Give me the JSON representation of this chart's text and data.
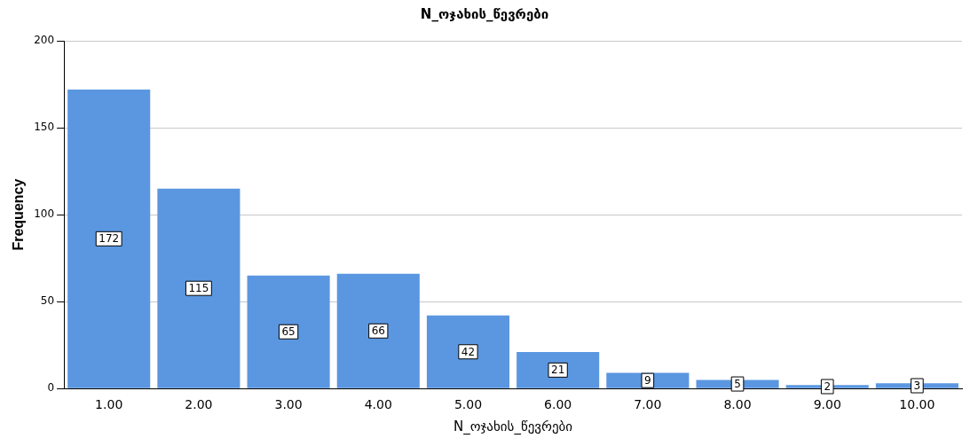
{
  "chart_data": {
    "type": "bar",
    "title": "N_ოჯახის_წევრები",
    "xlabel": "N_ოჯახის_წევრები",
    "ylabel": "Frequency",
    "categories": [
      "1.00",
      "2.00",
      "3.00",
      "4.00",
      "5.00",
      "6.00",
      "7.00",
      "8.00",
      "9.00",
      "10.00"
    ],
    "values": [
      172,
      115,
      65,
      66,
      42,
      21,
      9,
      5,
      2,
      3
    ],
    "color": "#5b97e1",
    "ylim": [
      0,
      200
    ],
    "yticks": [
      0,
      50,
      100,
      150,
      200
    ],
    "grid": "y",
    "data_labels": true,
    "legend": false
  }
}
